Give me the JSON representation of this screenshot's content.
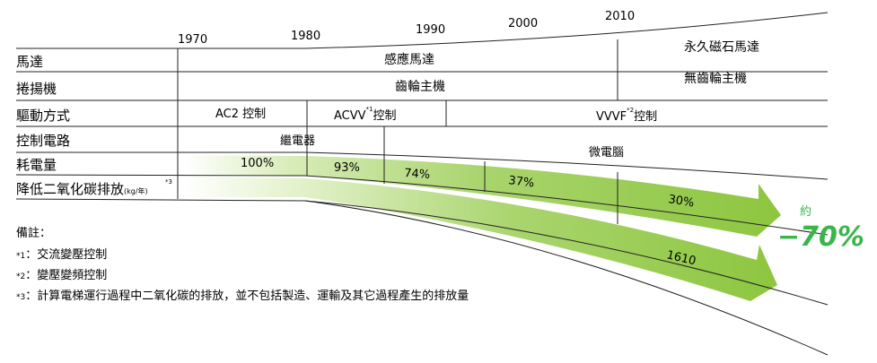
{
  "years": [
    "1970",
    "1980",
    "1990",
    "2000",
    "2010"
  ],
  "rows": {
    "motor": "馬達",
    "hoist": "捲揚機",
    "drive": "驅動方式",
    "control_circuit": "控制電路",
    "power": "耗電量",
    "co2": "降低二氧化碳排放",
    "co2_unit": "(kg/年)",
    "co2_sup": "*3"
  },
  "motor": {
    "induction": "感應馬達",
    "permanent": "永久磁石馬達"
  },
  "hoist": {
    "geared": "齒輪主機",
    "gearless": "無齒輪主機"
  },
  "drive": {
    "ac2": "AC2 控制",
    "acvv": "ACVV",
    "acvv_sup": "*1",
    "acvv_suffix": "控制",
    "vvvf": "VVVF",
    "vvvf_sup": "*2",
    "vvvf_suffix": "控制"
  },
  "control": {
    "relay": "繼電器",
    "micro": "微電腦"
  },
  "power_values": [
    "100%",
    "93%",
    "74%",
    "37%",
    "30%"
  ],
  "co2_value": "1610",
  "reduction": {
    "label": "約",
    "value": "−70%"
  },
  "notes": {
    "title": "備註：",
    "items": [
      {
        "mark": "*1",
        "text": "：交流變壓控制"
      },
      {
        "mark": "*2",
        "text": "：變壓變頻控制"
      },
      {
        "mark": "*3",
        "text": "：計算電梯運行過程中二氧化碳的排放，並不包括製造、運輸及其它過程產生的排放量"
      }
    ]
  },
  "colors": {
    "arrow": "#8dc63f",
    "accent": "#39b54a",
    "line": "#222222"
  }
}
